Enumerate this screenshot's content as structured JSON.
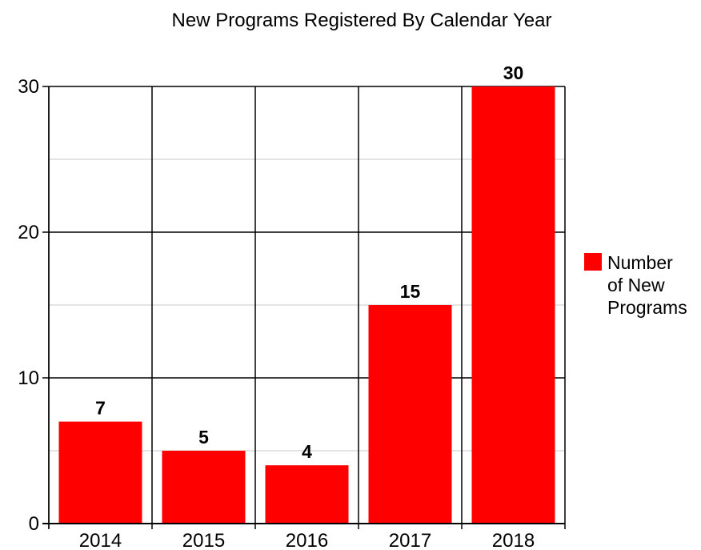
{
  "chart_data": {
    "type": "bar",
    "title": "New Programs Registered By Calendar Year",
    "categories": [
      "2014",
      "2015",
      "2016",
      "2017",
      "2018"
    ],
    "series": [
      {
        "name": "Number of New Programs",
        "values": [
          7,
          5,
          4,
          15,
          30
        ],
        "color": "#ff0000"
      }
    ],
    "data_labels": [
      "7",
      "5",
      "4",
      "15",
      "30"
    ],
    "xlabel": "",
    "ylabel": "",
    "ylim": [
      0,
      30
    ],
    "yticks": [
      0,
      10,
      20,
      30
    ],
    "ytick_labels": [
      "0",
      "10",
      "20",
      "30"
    ],
    "minor_gridlines": [
      5,
      15,
      25
    ],
    "grid": true,
    "legend": {
      "placement": "right",
      "lines": [
        "Number",
        "of New",
        "Programs"
      ]
    }
  }
}
